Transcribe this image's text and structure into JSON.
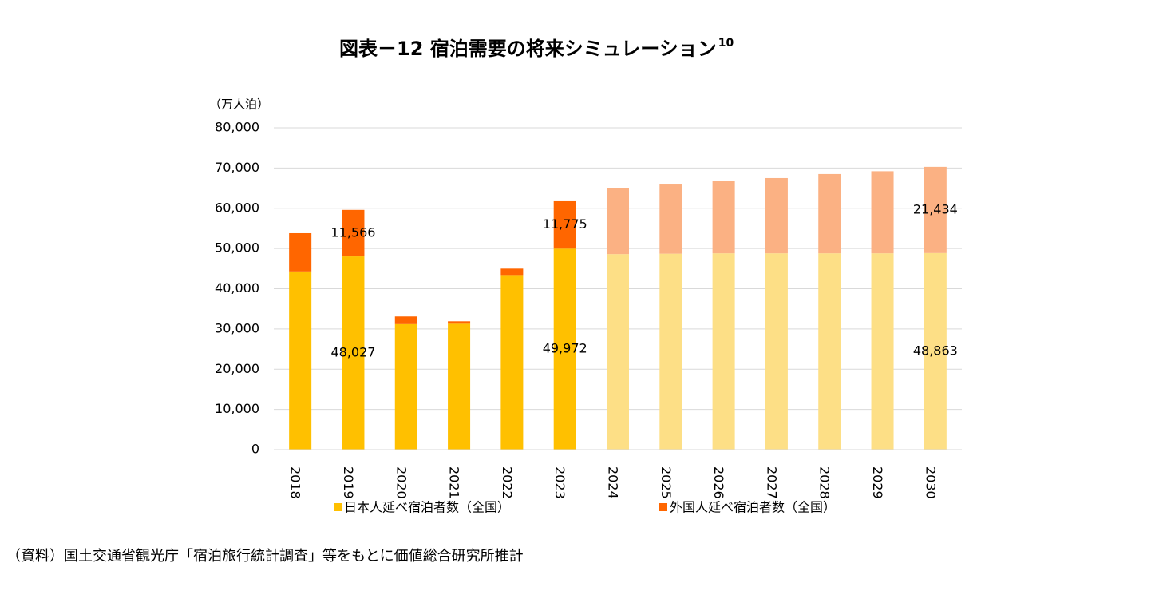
{
  "chart_data": {
    "type": "bar",
    "stacked": true,
    "title": "図表－12 宿泊需要の将来シミュレーション",
    "title_note": "10",
    "y_label": "（万人泊）",
    "categories": [
      "2018",
      "2019",
      "2020",
      "2021",
      "2022",
      "2023",
      "2024",
      "2025",
      "2026",
      "2027",
      "2028",
      "2029",
      "2030"
    ],
    "series": [
      {
        "name": "日本人延べ宿泊者数（全国）",
        "color": "#ffc000",
        "colors": [
          "#ffc000",
          "#ffc000",
          "#ffc000",
          "#ffc000",
          "#ffc000",
          "#ffc000",
          "#fddf86",
          "#fddf86",
          "#fddf86",
          "#fddf86",
          "#fddf86",
          "#fddf86",
          "#fddf86"
        ],
        "values": [
          44300,
          48027,
          31200,
          31300,
          43400,
          49972,
          48600,
          48700,
          48800,
          48800,
          48800,
          48800,
          48863
        ],
        "value_labels": [
          null,
          "48,027",
          null,
          null,
          null,
          "49,972",
          null,
          null,
          null,
          null,
          null,
          null,
          "48,863"
        ]
      },
      {
        "name": "外国人延べ宿泊者数（全国）",
        "color": "#ff6600",
        "colors": [
          "#ff6600",
          "#ff6600",
          "#ff6600",
          "#ff6600",
          "#ff6600",
          "#ff6600",
          "#fbb183",
          "#fbb183",
          "#fbb183",
          "#fbb183",
          "#fbb183",
          "#fbb183",
          "#fbb183"
        ],
        "values": [
          9500,
          11566,
          1900,
          600,
          1600,
          11775,
          16500,
          17200,
          17900,
          18700,
          19700,
          20400,
          21434
        ],
        "value_labels": [
          null,
          "11,566",
          null,
          null,
          null,
          "11,775",
          null,
          null,
          null,
          null,
          null,
          null,
          "21,434"
        ]
      }
    ],
    "ylim": [
      0,
      80000
    ],
    "yticks": [
      0,
      {
        "value": 10000,
        "label": "10,000"
      },
      {
        "value": 20000,
        "label": "20,000"
      },
      {
        "value": 30000,
        "label": "30,000"
      },
      {
        "value": 40000,
        "label": "40,000"
      },
      {
        "value": 50000,
        "label": "50,000"
      },
      {
        "value": 60000,
        "label": "60,000"
      },
      {
        "value": 70000,
        "label": "70,000"
      },
      {
        "value": 80000,
        "label": "80,000"
      }
    ],
    "grid": true,
    "legend": "bottom"
  },
  "source": "（資料）国土交通省観光庁「宿泊旅行統計調査」等をもとに価値総合研究所推計"
}
